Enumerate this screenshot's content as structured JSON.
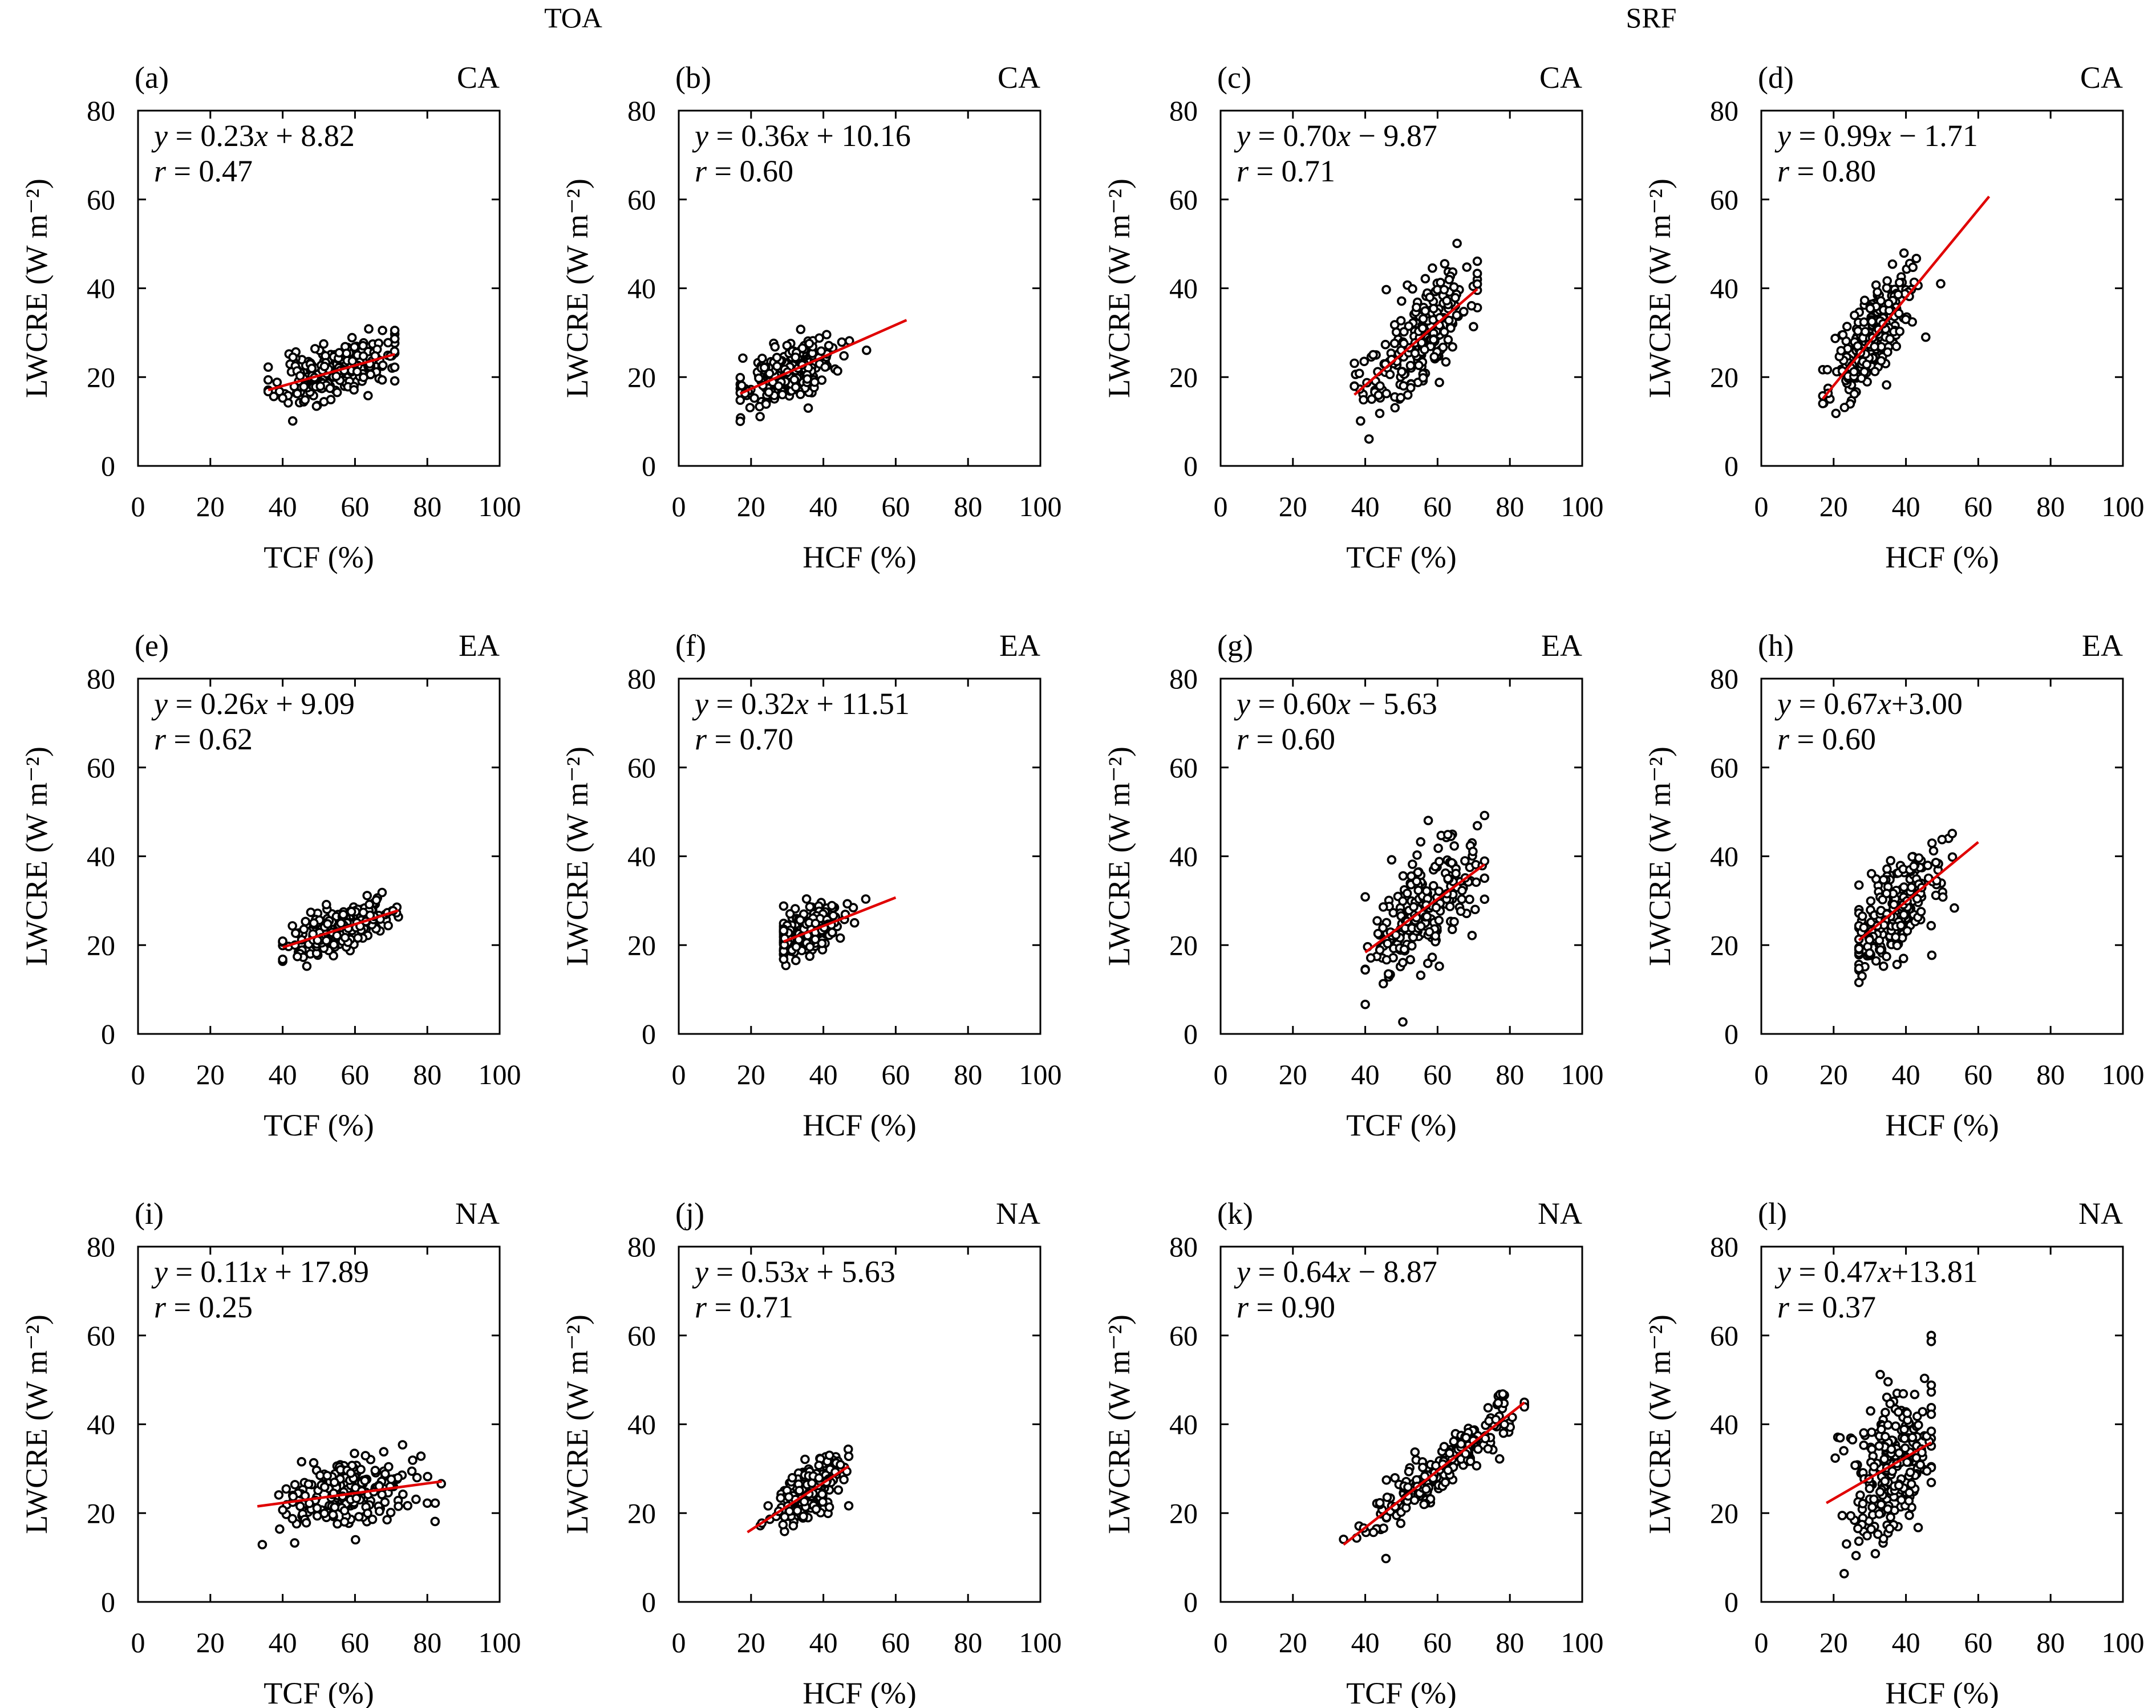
{
  "headers": {
    "left": "TOA",
    "right": "SRF"
  },
  "axis": {
    "ylabel": "LWCRE (W m⁻²)",
    "ylim": [
      0,
      80
    ],
    "xlim": [
      0,
      100
    ],
    "yticks": [
      0,
      20,
      40,
      60,
      80
    ],
    "xticks": [
      0,
      20,
      40,
      60,
      80,
      100
    ]
  },
  "chart_data": [
    {
      "id": "a",
      "type": "scatter",
      "panel_label": "(a)",
      "region": "CA",
      "xlabel": "TCF (%)",
      "ylabel": "LWCRE (W m⁻²)",
      "slope": 0.23,
      "intercept": 8.82,
      "eq_prefix": "y",
      "eq_rest": " = 0.23",
      "eq_x": "x",
      "eq_tail": " + 8.82",
      "r_text": " = 0.47",
      "fit_x": [
        36,
        71
      ],
      "cloud": {
        "cx": 54,
        "sx": 8,
        "sy": 3.0,
        "n": 220,
        "xmin": 36,
        "xmax": 71,
        "seed": 11
      }
    },
    {
      "id": "b",
      "type": "scatter",
      "panel_label": "(b)",
      "region": "CA",
      "xlabel": "HCF (%)",
      "ylabel": "LWCRE (W m⁻²)",
      "slope": 0.36,
      "intercept": 10.16,
      "eq_prefix": "y",
      "eq_rest": " = 0.36",
      "eq_x": "x",
      "eq_tail": " + 10.16",
      "r_text": " = 0.60",
      "fit_x": [
        17,
        63
      ],
      "cloud": {
        "cx": 30,
        "sx": 7,
        "sy": 3.0,
        "n": 220,
        "xmin": 17,
        "xmax": 63,
        "seed": 22
      }
    },
    {
      "id": "c",
      "type": "scatter",
      "panel_label": "(c)",
      "region": "CA",
      "xlabel": "TCF (%)",
      "ylabel": "LWCRE (W m⁻²)",
      "slope": 0.7,
      "intercept": -9.87,
      "eq_prefix": "y",
      "eq_rest": " = 0.70",
      "eq_x": "x",
      "eq_tail": " − 9.87",
      "r_text": " = 0.71",
      "fit_x": [
        37,
        71
      ],
      "cloud": {
        "cx": 55,
        "sx": 8,
        "sy": 5.5,
        "n": 230,
        "xmin": 37,
        "xmax": 71,
        "seed": 33
      }
    },
    {
      "id": "d",
      "type": "scatter",
      "panel_label": "(d)",
      "region": "CA",
      "xlabel": "HCF (%)",
      "ylabel": "LWCRE (W m⁻²)",
      "slope": 0.99,
      "intercept": -1.71,
      "eq_prefix": "y",
      "eq_rest": " = 0.99",
      "eq_x": "x",
      "eq_tail": " − 1.71",
      "r_text": " = 0.80",
      "fit_x": [
        17,
        63
      ],
      "cloud": {
        "cx": 30,
        "sx": 6,
        "sy": 4.5,
        "n": 230,
        "xmin": 17,
        "xmax": 63,
        "seed": 44
      }
    },
    {
      "id": "e",
      "type": "scatter",
      "panel_label": "(e)",
      "region": "EA",
      "xlabel": "TCF (%)",
      "ylabel": "LWCRE (W m⁻²)",
      "slope": 0.26,
      "intercept": 9.09,
      "eq_prefix": "y",
      "eq_rest": " = 0.26",
      "eq_x": "x",
      "eq_tail": " + 9.09",
      "r_text": " = 0.62",
      "fit_x": [
        40,
        72
      ],
      "cloud": {
        "cx": 56,
        "sx": 7,
        "sy": 2.5,
        "n": 230,
        "xmin": 40,
        "xmax": 72,
        "seed": 55
      }
    },
    {
      "id": "f",
      "type": "scatter",
      "panel_label": "(f)",
      "region": "EA",
      "xlabel": "HCF (%)",
      "ylabel": "LWCRE (W m⁻²)",
      "slope": 0.32,
      "intercept": 11.51,
      "eq_prefix": "y",
      "eq_rest": " = 0.32",
      "eq_x": "x",
      "eq_tail": " + 11.51",
      "r_text": " = 0.70",
      "fit_x": [
        29,
        60
      ],
      "cloud": {
        "cx": 36,
        "sx": 5,
        "sy": 2.2,
        "n": 230,
        "xmin": 29,
        "xmax": 60,
        "seed": 66
      }
    },
    {
      "id": "g",
      "type": "scatter",
      "panel_label": "(g)",
      "region": "EA",
      "xlabel": "TCF (%)",
      "ylabel": "LWCRE (W m⁻²)",
      "slope": 0.6,
      "intercept": -5.63,
      "eq_prefix": "y",
      "eq_rest": " = 0.60",
      "eq_x": "x",
      "eq_tail": " − 5.63",
      "r_text": " = 0.60",
      "fit_x": [
        40,
        73
      ],
      "cloud": {
        "cx": 56,
        "sx": 8,
        "sy": 6.5,
        "n": 220,
        "xmin": 40,
        "xmax": 73,
        "seed": 77
      }
    },
    {
      "id": "h",
      "type": "scatter",
      "panel_label": "(h)",
      "region": "EA",
      "xlabel": "HCF (%)",
      "ylabel": "LWCRE (W m⁻²)",
      "slope": 0.67,
      "intercept": 3.0,
      "eq_prefix": "y",
      "eq_rest": " = 0.67",
      "eq_x": "x",
      "eq_tail": "+3.00",
      "r_text": " = 0.60",
      "fit_x": [
        27,
        60
      ],
      "cloud": {
        "cx": 37,
        "sx": 6,
        "sy": 5.5,
        "n": 220,
        "xmin": 27,
        "xmax": 60,
        "seed": 88
      }
    },
    {
      "id": "i",
      "type": "scatter",
      "panel_label": "(i)",
      "region": "NA",
      "xlabel": "TCF (%)",
      "ylabel": "LWCRE (W m⁻²)",
      "slope": 0.11,
      "intercept": 17.89,
      "eq_prefix": "y",
      "eq_rest": " = 0.11",
      "eq_x": "x",
      "eq_tail": " + 17.89",
      "r_text": " = 0.25",
      "fit_x": [
        33,
        84
      ],
      "cloud": {
        "cx": 58,
        "sx": 10,
        "sy": 4.0,
        "n": 200,
        "xmin": 33,
        "xmax": 84,
        "seed": 99
      }
    },
    {
      "id": "j",
      "type": "scatter",
      "panel_label": "(j)",
      "region": "NA",
      "xlabel": "HCF (%)",
      "ylabel": "LWCRE (W m⁻²)",
      "slope": 0.53,
      "intercept": 5.63,
      "eq_prefix": "y",
      "eq_rest": " = 0.53",
      "eq_x": "x",
      "eq_tail": " + 5.63",
      "r_text": " = 0.71",
      "fit_x": [
        19,
        47
      ],
      "cloud": {
        "cx": 36,
        "sx": 5,
        "sy": 3.0,
        "n": 230,
        "xmin": 19,
        "xmax": 47,
        "seed": 110
      }
    },
    {
      "id": "k",
      "type": "scatter",
      "panel_label": "(k)",
      "region": "NA",
      "xlabel": "TCF (%)",
      "ylabel": "LWCRE (W m⁻²)",
      "slope": 0.64,
      "intercept": -8.87,
      "eq_prefix": "y",
      "eq_rest": " = 0.64",
      "eq_x": "x",
      "eq_tail": " − 8.87",
      "r_text": " = 0.90",
      "fit_x": [
        34,
        84
      ],
      "cloud": {
        "cx": 62,
        "sx": 11,
        "sy": 2.8,
        "n": 230,
        "xmin": 34,
        "xmax": 84,
        "seed": 121
      }
    },
    {
      "id": "l",
      "type": "scatter",
      "panel_label": "(l)",
      "region": "NA",
      "xlabel": "HCF (%)",
      "ylabel": "LWCRE (W m⁻²)",
      "slope": 0.47,
      "intercept": 13.81,
      "eq_prefix": "y",
      "eq_rest": " = 0.47",
      "eq_x": "x",
      "eq_tail": "+13.81",
      "r_text": " = 0.37",
      "fit_x": [
        18,
        47
      ],
      "cloud": {
        "cx": 36,
        "sx": 6,
        "sy": 8.0,
        "n": 230,
        "xmin": 18,
        "xmax": 47,
        "seed": 132
      }
    }
  ]
}
